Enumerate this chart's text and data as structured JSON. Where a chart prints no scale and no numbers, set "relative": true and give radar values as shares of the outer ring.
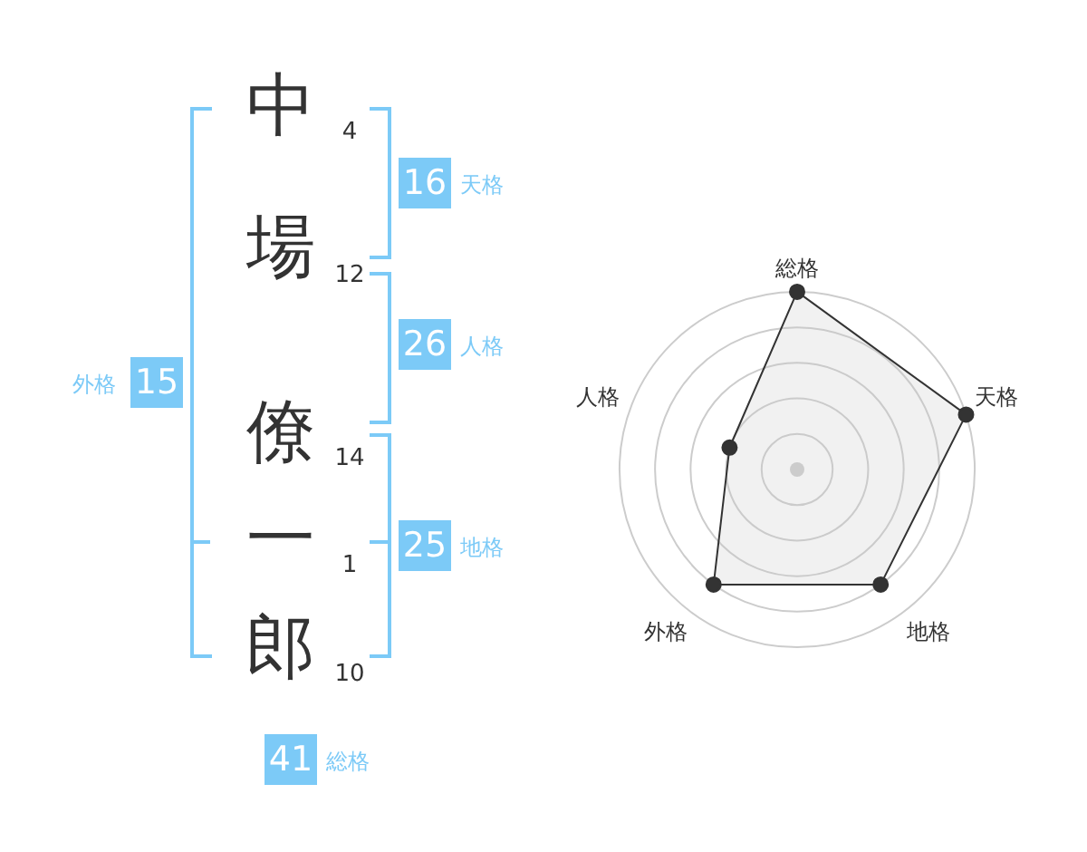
{
  "chart_data": {
    "type": "radar",
    "relative": true,
    "grid": true,
    "marker": "circle",
    "legend": false,
    "categories": [
      "総格",
      "天格",
      "地格",
      "外格",
      "人格"
    ],
    "series": [
      {
        "color": "#333333",
        "values": [
          1,
          1,
          0.8,
          0.8,
          0.4
        ]
      }
    ],
    "annotations": [
      "中",
      "4",
      "場",
      "12",
      "僚",
      "14",
      "一",
      "1",
      "郎",
      "10",
      "16",
      "天格",
      "26",
      "人格",
      "25",
      "地格",
      "15",
      "外格",
      "41",
      "総格"
    ]
  }
}
